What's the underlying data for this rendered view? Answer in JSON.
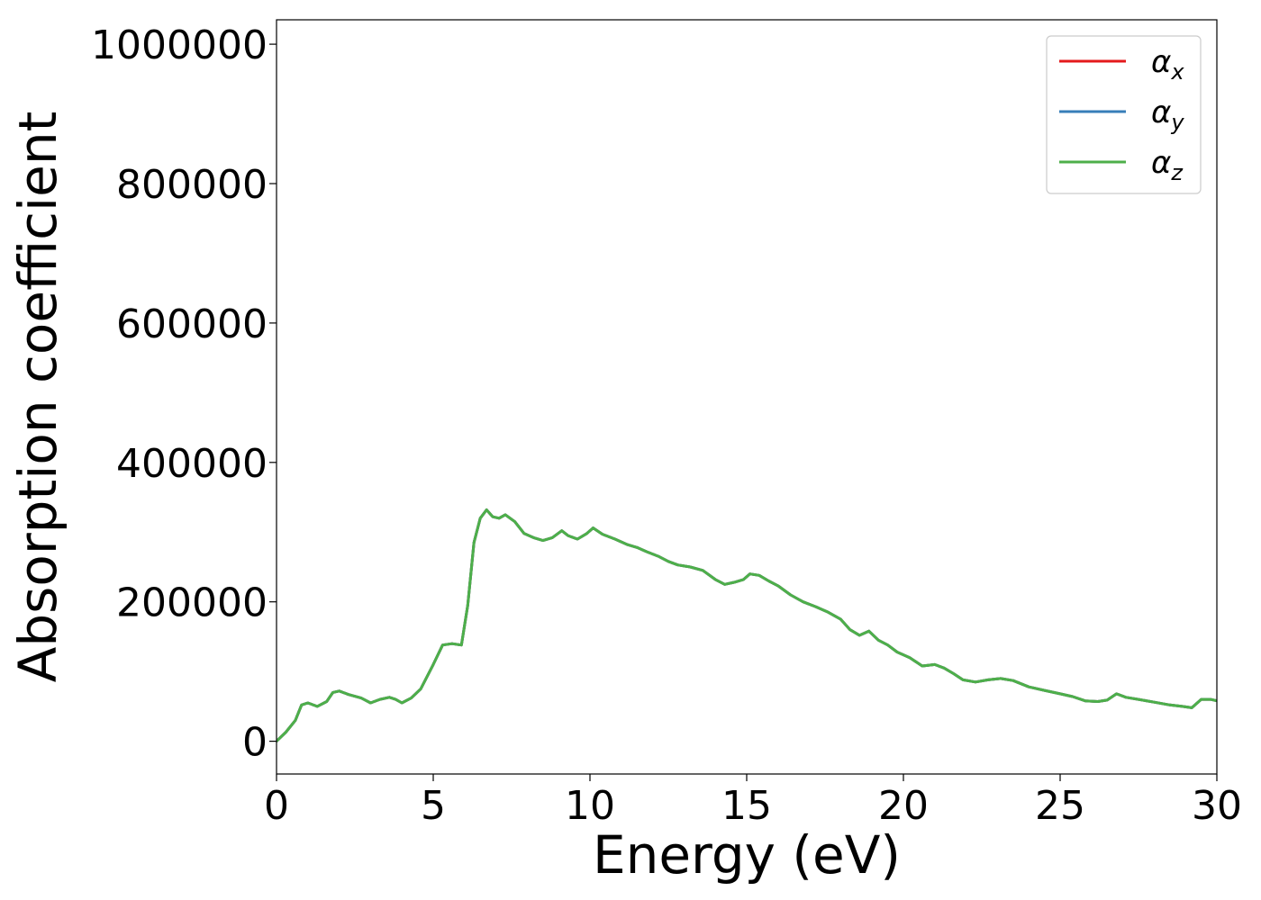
{
  "chart_data": {
    "type": "line",
    "xlabel": "Energy (eV)",
    "ylabel": "Absorption coefficient",
    "xlim": [
      0,
      30
    ],
    "ylim": [
      -47000,
      1035000
    ],
    "xticks": [
      "0",
      "5",
      "10",
      "15",
      "20",
      "25",
      "30"
    ],
    "xtick_values": [
      0,
      5,
      10,
      15,
      20,
      25,
      30
    ],
    "yticks": [
      "0",
      "200000",
      "400000",
      "600000",
      "800000",
      "1000000"
    ],
    "ytick_values": [
      0,
      200000,
      400000,
      600000,
      800000,
      1000000
    ],
    "grid": false,
    "legend_position": "top-right",
    "series": [
      {
        "name": "α",
        "subscript": "x",
        "color": "#e41a1c",
        "x": [
          0,
          0.3,
          0.6,
          0.8,
          1.0,
          1.3,
          1.6,
          1.8,
          2.0,
          2.3,
          2.7,
          3.0,
          3.3,
          3.6,
          3.8,
          4.0,
          4.3,
          4.6,
          5.0,
          5.3,
          5.6,
          5.9,
          6.1,
          6.3,
          6.5,
          6.7,
          6.9,
          7.1,
          7.3,
          7.6,
          7.9,
          8.2,
          8.5,
          8.8,
          9.1,
          9.3,
          9.6,
          9.9,
          10.1,
          10.4,
          10.8,
          11.2,
          11.5,
          11.8,
          12.2,
          12.5,
          12.8,
          13.2,
          13.6,
          14.0,
          14.3,
          14.6,
          14.9,
          15.1,
          15.4,
          15.7,
          16.0,
          16.4,
          16.8,
          17.2,
          17.6,
          18.0,
          18.3,
          18.6,
          18.9,
          19.2,
          19.5,
          19.8,
          20.2,
          20.6,
          21.0,
          21.3,
          21.6,
          21.9,
          22.3,
          22.7,
          23.1,
          23.5,
          24.0,
          24.5,
          25.0,
          25.4,
          25.8,
          26.2,
          26.5,
          26.8,
          27.1,
          27.5,
          28.0,
          28.5,
          28.9,
          29.2,
          29.5,
          29.8,
          30.0
        ],
        "y": [
          0,
          13000,
          30000,
          52000,
          55000,
          50000,
          57000,
          70000,
          72000,
          67000,
          62000,
          55000,
          60000,
          63000,
          60000,
          55000,
          62000,
          75000,
          110000,
          138000,
          140000,
          138000,
          195000,
          285000,
          320000,
          332000,
          322000,
          320000,
          325000,
          315000,
          298000,
          292000,
          288000,
          292000,
          302000,
          295000,
          290000,
          298000,
          306000,
          297000,
          290000,
          282000,
          278000,
          272000,
          265000,
          258000,
          253000,
          250000,
          245000,
          232000,
          225000,
          228000,
          232000,
          240000,
          238000,
          230000,
          223000,
          210000,
          200000,
          193000,
          185000,
          175000,
          160000,
          152000,
          158000,
          145000,
          138000,
          128000,
          120000,
          108000,
          110000,
          105000,
          97000,
          88000,
          85000,
          88000,
          90000,
          87000,
          78000,
          73000,
          68000,
          64000,
          58000,
          57000,
          59000,
          68000,
          63000,
          60000,
          56000,
          52000,
          50000,
          48000,
          60000,
          60000,
          58000
        ]
      },
      {
        "name": "α",
        "subscript": "y",
        "color": "#377eb8",
        "x": [
          0,
          0.3,
          0.6,
          0.8,
          1.0,
          1.3,
          1.6,
          1.8,
          2.0,
          2.3,
          2.7,
          3.0,
          3.3,
          3.6,
          3.8,
          4.0,
          4.3,
          4.6,
          5.0,
          5.3,
          5.6,
          5.9,
          6.1,
          6.3,
          6.5,
          6.7,
          6.9,
          7.1,
          7.3,
          7.6,
          7.9,
          8.2,
          8.5,
          8.8,
          9.1,
          9.3,
          9.6,
          9.9,
          10.1,
          10.4,
          10.8,
          11.2,
          11.5,
          11.8,
          12.2,
          12.5,
          12.8,
          13.2,
          13.6,
          14.0,
          14.3,
          14.6,
          14.9,
          15.1,
          15.4,
          15.7,
          16.0,
          16.4,
          16.8,
          17.2,
          17.6,
          18.0,
          18.3,
          18.6,
          18.9,
          19.2,
          19.5,
          19.8,
          20.2,
          20.6,
          21.0,
          21.3,
          21.6,
          21.9,
          22.3,
          22.7,
          23.1,
          23.5,
          24.0,
          24.5,
          25.0,
          25.4,
          25.8,
          26.2,
          26.5,
          26.8,
          27.1,
          27.5,
          28.0,
          28.5,
          28.9,
          29.2,
          29.5,
          29.8,
          30.0
        ],
        "y": [
          0,
          13000,
          30000,
          52000,
          55000,
          50000,
          57000,
          70000,
          72000,
          67000,
          62000,
          55000,
          60000,
          63000,
          60000,
          55000,
          62000,
          75000,
          110000,
          138000,
          140000,
          138000,
          195000,
          285000,
          320000,
          332000,
          322000,
          320000,
          325000,
          315000,
          298000,
          292000,
          288000,
          292000,
          302000,
          295000,
          290000,
          298000,
          306000,
          297000,
          290000,
          282000,
          278000,
          272000,
          265000,
          258000,
          253000,
          250000,
          245000,
          232000,
          225000,
          228000,
          232000,
          240000,
          238000,
          230000,
          223000,
          210000,
          200000,
          193000,
          185000,
          175000,
          160000,
          152000,
          158000,
          145000,
          138000,
          128000,
          120000,
          108000,
          110000,
          105000,
          97000,
          88000,
          85000,
          88000,
          90000,
          87000,
          78000,
          73000,
          68000,
          64000,
          58000,
          57000,
          59000,
          68000,
          63000,
          60000,
          56000,
          52000,
          50000,
          48000,
          60000,
          60000,
          58000
        ]
      },
      {
        "name": "α",
        "subscript": "z",
        "color": "#4daf4a",
        "x": [
          0,
          0.3,
          0.6,
          0.8,
          1.0,
          1.3,
          1.6,
          1.8,
          2.0,
          2.3,
          2.7,
          3.0,
          3.3,
          3.6,
          3.8,
          4.0,
          4.3,
          4.6,
          5.0,
          5.3,
          5.6,
          5.9,
          6.1,
          6.3,
          6.5,
          6.7,
          6.9,
          7.1,
          7.3,
          7.6,
          7.9,
          8.2,
          8.5,
          8.8,
          9.1,
          9.3,
          9.6,
          9.9,
          10.1,
          10.4,
          10.8,
          11.2,
          11.5,
          11.8,
          12.2,
          12.5,
          12.8,
          13.2,
          13.6,
          14.0,
          14.3,
          14.6,
          14.9,
          15.1,
          15.4,
          15.7,
          16.0,
          16.4,
          16.8,
          17.2,
          17.6,
          18.0,
          18.3,
          18.6,
          18.9,
          19.2,
          19.5,
          19.8,
          20.2,
          20.6,
          21.0,
          21.3,
          21.6,
          21.9,
          22.3,
          22.7,
          23.1,
          23.5,
          24.0,
          24.5,
          25.0,
          25.4,
          25.8,
          26.2,
          26.5,
          26.8,
          27.1,
          27.5,
          28.0,
          28.5,
          28.9,
          29.2,
          29.5,
          29.8,
          30.0
        ],
        "y": [
          0,
          13000,
          30000,
          52000,
          55000,
          50000,
          57000,
          70000,
          72000,
          67000,
          62000,
          55000,
          60000,
          63000,
          60000,
          55000,
          62000,
          75000,
          110000,
          138000,
          140000,
          138000,
          195000,
          285000,
          320000,
          332000,
          322000,
          320000,
          325000,
          315000,
          298000,
          292000,
          288000,
          292000,
          302000,
          295000,
          290000,
          298000,
          306000,
          297000,
          290000,
          282000,
          278000,
          272000,
          265000,
          258000,
          253000,
          250000,
          245000,
          232000,
          225000,
          228000,
          232000,
          240000,
          238000,
          230000,
          223000,
          210000,
          200000,
          193000,
          185000,
          175000,
          160000,
          152000,
          158000,
          145000,
          138000,
          128000,
          120000,
          108000,
          110000,
          105000,
          97000,
          88000,
          85000,
          88000,
          90000,
          87000,
          78000,
          73000,
          68000,
          64000,
          58000,
          57000,
          59000,
          68000,
          63000,
          60000,
          56000,
          52000,
          50000,
          48000,
          60000,
          60000,
          58000
        ]
      }
    ]
  }
}
